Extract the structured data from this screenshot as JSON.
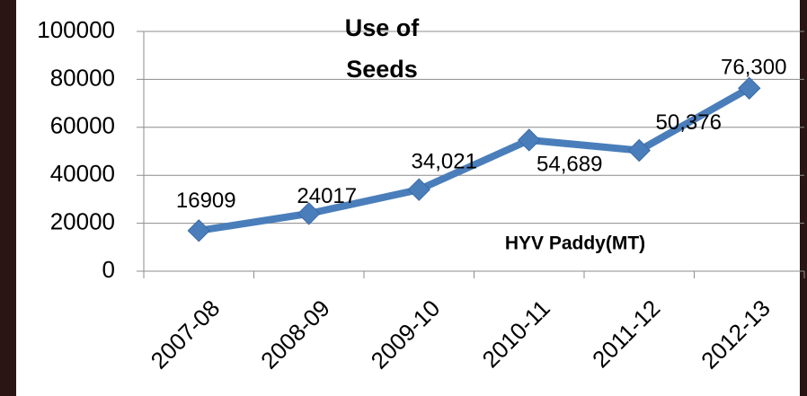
{
  "chart_data": {
    "type": "line",
    "title": "Use of Seeds",
    "categories": [
      "2007-08",
      "2008-09",
      "2009-10",
      "2010-11",
      "2011-12",
      "2012-13"
    ],
    "series": [
      {
        "name": "HYV Paddy(MT)",
        "color": "#4a7ebb",
        "values": [
          16909,
          24017,
          34021,
          54689,
          50376,
          76300
        ],
        "value_labels": [
          "16909",
          "24017",
          "34,021",
          "54,689",
          "50,376",
          "76,300"
        ]
      }
    ],
    "ylim": [
      0,
      100000
    ],
    "yticks": [
      0,
      20000,
      40000,
      60000,
      80000,
      100000
    ],
    "grid": true
  }
}
